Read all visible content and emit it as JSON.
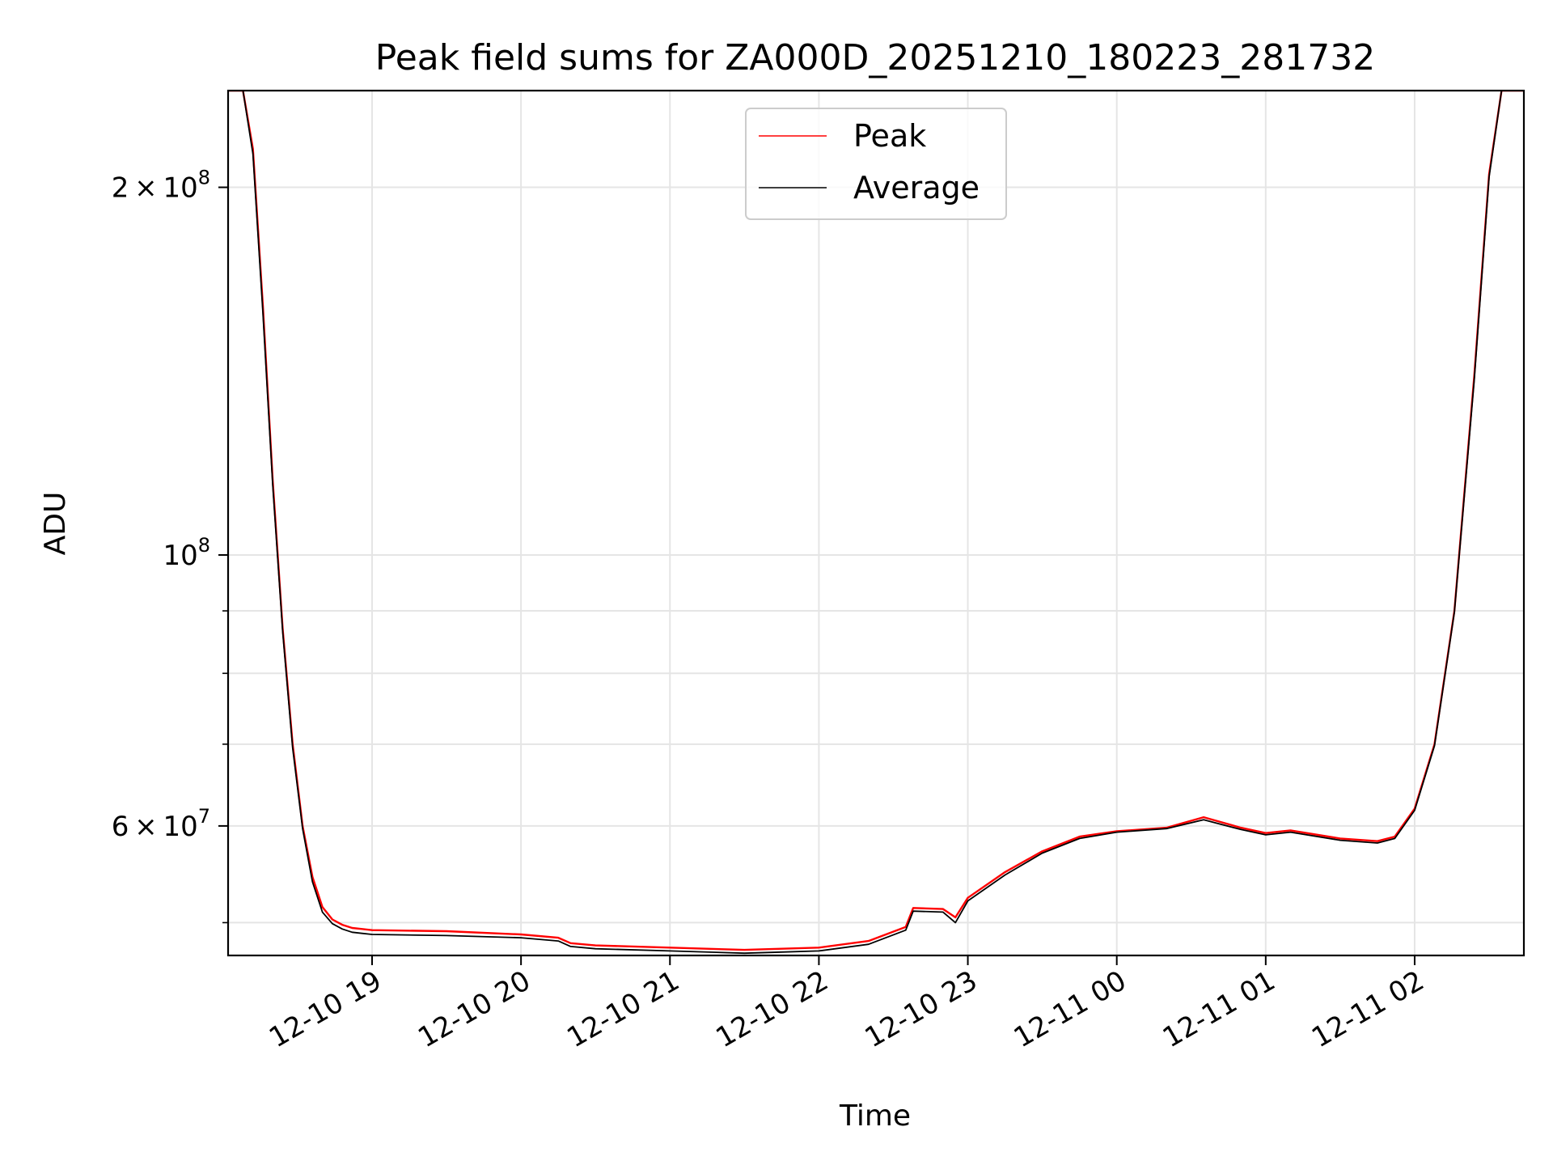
{
  "chart_data": {
    "type": "line",
    "title": "Peak field sums for ZA000D_20251210_180223_281732",
    "xlabel": "Time",
    "ylabel": "ADU",
    "y_scale": "log",
    "grid": true,
    "legend_placement": "upper-center",
    "xlim": [
      "2025-12-10 18:02",
      "2025-12-11 02:44"
    ],
    "ylim": [
      47000000,
      240000000
    ],
    "x_ticks": [
      {
        "value": "2025-12-10 19:00",
        "label": "12-10 19"
      },
      {
        "value": "2025-12-10 20:00",
        "label": "12-10 20"
      },
      {
        "value": "2025-12-10 21:00",
        "label": "12-10 21"
      },
      {
        "value": "2025-12-10 22:00",
        "label": "12-10 22"
      },
      {
        "value": "2025-12-10 23:00",
        "label": "12-10 23"
      },
      {
        "value": "2025-12-11 00:00",
        "label": "12-11 00"
      },
      {
        "value": "2025-12-11 01:00",
        "label": "12-11 01"
      },
      {
        "value": "2025-12-11 02:00",
        "label": "12-11 02"
      }
    ],
    "y_ticks_major": [
      {
        "value": 200000000,
        "mantissa": "2",
        "exponent": "8"
      },
      {
        "value": 100000000,
        "mantissa": "",
        "exponent": "8"
      },
      {
        "value": 60000000,
        "mantissa": "6",
        "exponent": "7"
      }
    ],
    "y_ticks_minor": [
      50000000,
      70000000,
      80000000,
      90000000
    ],
    "series": [
      {
        "name": "Peak",
        "color": "#ff0000",
        "x": [
          "2025-12-10 18:02",
          "2025-12-10 18:08",
          "2025-12-10 18:12",
          "2025-12-10 18:16",
          "2025-12-10 18:20",
          "2025-12-10 18:24",
          "2025-12-10 18:28",
          "2025-12-10 18:32",
          "2025-12-10 18:36",
          "2025-12-10 18:40",
          "2025-12-10 18:44",
          "2025-12-10 18:48",
          "2025-12-10 18:52",
          "2025-12-10 18:56",
          "2025-12-10 19:00",
          "2025-12-10 19:30",
          "2025-12-10 20:00",
          "2025-12-10 20:15",
          "2025-12-10 20:20",
          "2025-12-10 20:30",
          "2025-12-10 21:00",
          "2025-12-10 21:30",
          "2025-12-10 21:45",
          "2025-12-10 22:00",
          "2025-12-10 22:20",
          "2025-12-10 22:35",
          "2025-12-10 22:38",
          "2025-12-10 22:50",
          "2025-12-10 22:55",
          "2025-12-10 23:00",
          "2025-12-10 23:15",
          "2025-12-10 23:30",
          "2025-12-10 23:45",
          "2025-12-11 00:00",
          "2025-12-11 00:20",
          "2025-12-11 00:35",
          "2025-12-11 00:50",
          "2025-12-11 01:00",
          "2025-12-11 01:10",
          "2025-12-11 01:30",
          "2025-12-11 01:45",
          "2025-12-11 01:52",
          "2025-12-11 02:00",
          "2025-12-11 02:08",
          "2025-12-11 02:16",
          "2025-12-11 02:24",
          "2025-12-11 02:30",
          "2025-12-11 02:35",
          "2025-12-11 02:44"
        ],
        "y": [
          240000000,
          240000000,
          215000000,
          160000000,
          115000000,
          87000000,
          70000000,
          60000000,
          54500000,
          51500000,
          50300000,
          49800000,
          49500000,
          49400000,
          49300000,
          49200000,
          48900000,
          48600000,
          48100000,
          47900000,
          47700000,
          47500000,
          47600000,
          47700000,
          48300000,
          49600000,
          51400000,
          51300000,
          50500000,
          52400000,
          55000000,
          57200000,
          58800000,
          59400000,
          59800000,
          61000000,
          59800000,
          59200000,
          59500000,
          58600000,
          58300000,
          58800000,
          62000000,
          70000000,
          90000000,
          140000000,
          205000000,
          240000000,
          240000000
        ]
      },
      {
        "name": "Average",
        "color": "#000000",
        "x": [
          "2025-12-10 18:02",
          "2025-12-10 18:08",
          "2025-12-10 18:12",
          "2025-12-10 18:16",
          "2025-12-10 18:20",
          "2025-12-10 18:24",
          "2025-12-10 18:28",
          "2025-12-10 18:32",
          "2025-12-10 18:36",
          "2025-12-10 18:40",
          "2025-12-10 18:44",
          "2025-12-10 18:48",
          "2025-12-10 18:52",
          "2025-12-10 18:56",
          "2025-12-10 19:00",
          "2025-12-10 19:30",
          "2025-12-10 20:00",
          "2025-12-10 20:15",
          "2025-12-10 20:20",
          "2025-12-10 20:30",
          "2025-12-10 21:00",
          "2025-12-10 21:30",
          "2025-12-10 21:45",
          "2025-12-10 22:00",
          "2025-12-10 22:20",
          "2025-12-10 22:35",
          "2025-12-10 22:38",
          "2025-12-10 22:50",
          "2025-12-10 22:55",
          "2025-12-10 23:00",
          "2025-12-10 23:15",
          "2025-12-10 23:30",
          "2025-12-10 23:45",
          "2025-12-11 00:00",
          "2025-12-11 00:20",
          "2025-12-11 00:35",
          "2025-12-11 00:50",
          "2025-12-11 01:00",
          "2025-12-11 01:10",
          "2025-12-11 01:30",
          "2025-12-11 01:45",
          "2025-12-11 01:52",
          "2025-12-11 02:00",
          "2025-12-11 02:08",
          "2025-12-11 02:16",
          "2025-12-11 02:24",
          "2025-12-11 02:30",
          "2025-12-11 02:35",
          "2025-12-11 02:44"
        ],
        "y": [
          240000000,
          240000000,
          213000000,
          158000000,
          114000000,
          86500000,
          69500000,
          59700000,
          54000000,
          51000000,
          49900000,
          49400000,
          49100000,
          49000000,
          48900000,
          48800000,
          48600000,
          48300000,
          47800000,
          47600000,
          47400000,
          47200000,
          47300000,
          47400000,
          48000000,
          49300000,
          51100000,
          51000000,
          50000000,
          52100000,
          54700000,
          57000000,
          58600000,
          59300000,
          59700000,
          60700000,
          59600000,
          59000000,
          59300000,
          58400000,
          58100000,
          58600000,
          61800000,
          69800000,
          89800000,
          139000000,
          204000000,
          240000000,
          240000000
        ]
      }
    ]
  }
}
